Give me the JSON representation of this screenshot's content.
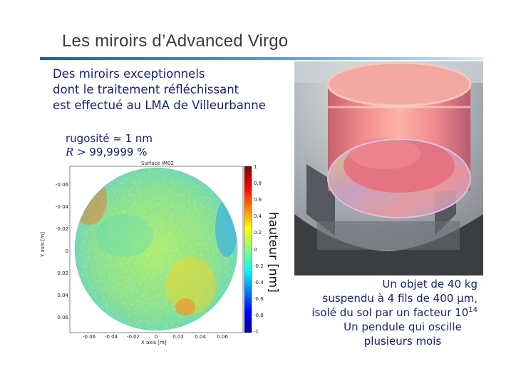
{
  "slide": {
    "title": "Les miroirs d’Advanced Virgo",
    "intro_lines": [
      "Des miroirs exceptionnels",
      "dont le traitement réfléchissant",
      "est effectué au LMA de Villeurbanne"
    ],
    "roughness": "rugosité ≃ 1 nm",
    "reflectivity_symbol": "R",
    "reflectivity_value": " > 99,9999 %"
  },
  "surface_map": {
    "title": "Surface IM02",
    "xlabel": "X axis [m]",
    "ylabel": "Y axis [m]",
    "x_ticks": [
      "-0.06",
      "-0.04",
      "-0.02",
      "0",
      "0.02",
      "0.04",
      "0.06"
    ],
    "y_ticks": [
      "-0.06",
      "-0.04",
      "-0.02",
      "0",
      "0.02",
      "0.04",
      "0.06"
    ],
    "colorbar_label": "hauteur [nm]",
    "colorbar_ticks": [
      "1",
      "0.8",
      "0.6",
      "0.4",
      "0.2",
      "0",
      "-0.2",
      "-0.4",
      "-0.6",
      "-0.8",
      "-1"
    ],
    "colormap": [
      "#00008f",
      "#0000ff",
      "#00bfff",
      "#20d0c0",
      "#9bff65",
      "#ffff00",
      "#ff8000",
      "#ff0000",
      "#800000"
    ]
  },
  "photo": {
    "caption_lines": [
      "Un objet de 40 kg",
      "suspendu à 4 fils de 400 μm,",
      "isolé du sol par un facteur 10"
    ],
    "caption_exponent": "14",
    "caption_tail": [
      "Un pendule qui oscille",
      "plusieurs mois"
    ]
  }
}
